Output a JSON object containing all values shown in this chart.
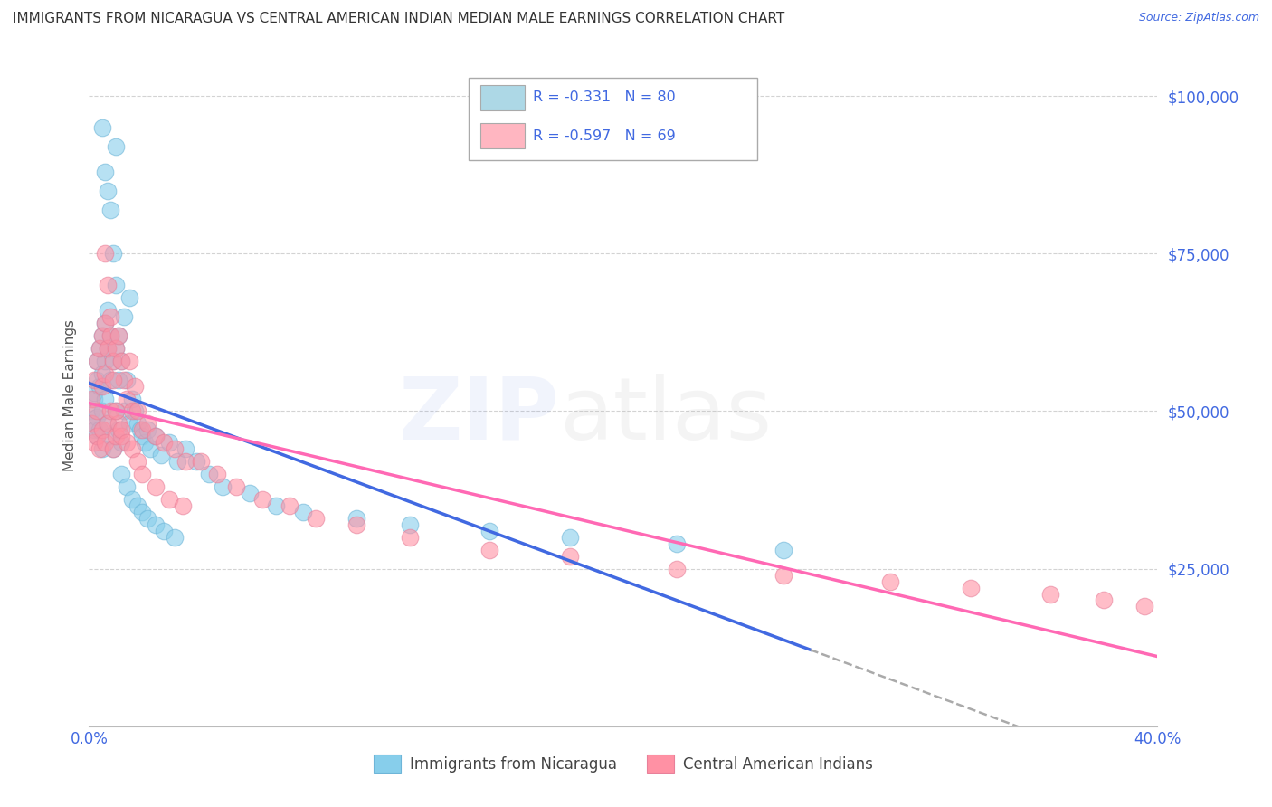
{
  "title": "IMMIGRANTS FROM NICARAGUA VS CENTRAL AMERICAN INDIAN MEDIAN MALE EARNINGS CORRELATION CHART",
  "source": "Source: ZipAtlas.com",
  "ylabel": "Median Male Earnings",
  "yticks": [
    0,
    25000,
    50000,
    75000,
    100000
  ],
  "ytick_labels": [
    "",
    "$25,000",
    "$50,000",
    "$75,000",
    "$100,000"
  ],
  "xlim": [
    0.0,
    0.4
  ],
  "ylim": [
    0,
    105000
  ],
  "legend1_R": "-0.331",
  "legend1_N": "80",
  "legend2_R": "-0.597",
  "legend2_N": "69",
  "legend_color1": "#add8e6",
  "legend_color2": "#ffb6c1",
  "scatter_color1": "#87CEEB",
  "scatter_color2": "#FF91A4",
  "line_color1": "#4169E1",
  "line_color2": "#FF69B4",
  "background_color": "#ffffff",
  "grid_color": "#d3d3d3",
  "tick_color": "#4169E1",
  "title_color": "#333333",
  "nicaragua_x": [
    0.001,
    0.001,
    0.002,
    0.002,
    0.002,
    0.003,
    0.003,
    0.003,
    0.003,
    0.004,
    0.004,
    0.004,
    0.005,
    0.005,
    0.005,
    0.005,
    0.006,
    0.006,
    0.006,
    0.007,
    0.007,
    0.007,
    0.008,
    0.008,
    0.008,
    0.009,
    0.009,
    0.01,
    0.01,
    0.011,
    0.011,
    0.012,
    0.012,
    0.013,
    0.013,
    0.014,
    0.015,
    0.015,
    0.016,
    0.017,
    0.018,
    0.019,
    0.02,
    0.021,
    0.022,
    0.023,
    0.025,
    0.027,
    0.03,
    0.033,
    0.036,
    0.04,
    0.045,
    0.05,
    0.06,
    0.07,
    0.08,
    0.1,
    0.12,
    0.15,
    0.18,
    0.22,
    0.26,
    0.006,
    0.007,
    0.008,
    0.009,
    0.01,
    0.011,
    0.012,
    0.014,
    0.016,
    0.018,
    0.02,
    0.022,
    0.025,
    0.028,
    0.032,
    0.01,
    0.005
  ],
  "nicaragua_y": [
    50000,
    48000,
    52000,
    47000,
    53000,
    55000,
    49000,
    46000,
    58000,
    60000,
    54000,
    47000,
    62000,
    56000,
    50000,
    44000,
    64000,
    58000,
    52000,
    66000,
    60000,
    48000,
    62000,
    55000,
    46000,
    58000,
    44000,
    60000,
    50000,
    62000,
    47000,
    58000,
    45000,
    65000,
    50000,
    55000,
    68000,
    48000,
    52000,
    50000,
    48000,
    47000,
    46000,
    45000,
    47000,
    44000,
    46000,
    43000,
    45000,
    42000,
    44000,
    42000,
    40000,
    38000,
    37000,
    35000,
    34000,
    33000,
    32000,
    31000,
    30000,
    29000,
    28000,
    88000,
    85000,
    82000,
    75000,
    70000,
    55000,
    40000,
    38000,
    36000,
    35000,
    34000,
    33000,
    32000,
    31000,
    30000,
    92000,
    95000
  ],
  "indian_x": [
    0.001,
    0.001,
    0.002,
    0.002,
    0.003,
    0.003,
    0.003,
    0.004,
    0.004,
    0.005,
    0.005,
    0.005,
    0.006,
    0.006,
    0.006,
    0.007,
    0.007,
    0.008,
    0.008,
    0.009,
    0.009,
    0.01,
    0.01,
    0.011,
    0.011,
    0.012,
    0.012,
    0.013,
    0.014,
    0.015,
    0.016,
    0.017,
    0.018,
    0.02,
    0.022,
    0.025,
    0.028,
    0.032,
    0.036,
    0.042,
    0.048,
    0.055,
    0.065,
    0.075,
    0.085,
    0.1,
    0.12,
    0.15,
    0.18,
    0.22,
    0.26,
    0.3,
    0.33,
    0.36,
    0.38,
    0.395,
    0.006,
    0.007,
    0.008,
    0.009,
    0.01,
    0.012,
    0.014,
    0.016,
    0.018,
    0.02,
    0.025,
    0.03,
    0.035
  ],
  "indian_y": [
    52000,
    48000,
    55000,
    45000,
    58000,
    50000,
    46000,
    60000,
    44000,
    62000,
    54000,
    47000,
    64000,
    56000,
    45000,
    60000,
    48000,
    62000,
    50000,
    58000,
    44000,
    60000,
    46000,
    62000,
    48000,
    58000,
    46000,
    55000,
    52000,
    58000,
    50000,
    54000,
    50000,
    47000,
    48000,
    46000,
    45000,
    44000,
    42000,
    42000,
    40000,
    38000,
    36000,
    35000,
    33000,
    32000,
    30000,
    28000,
    27000,
    25000,
    24000,
    23000,
    22000,
    21000,
    20000,
    19000,
    75000,
    70000,
    65000,
    55000,
    50000,
    47000,
    45000,
    44000,
    42000,
    40000,
    38000,
    36000,
    35000
  ]
}
